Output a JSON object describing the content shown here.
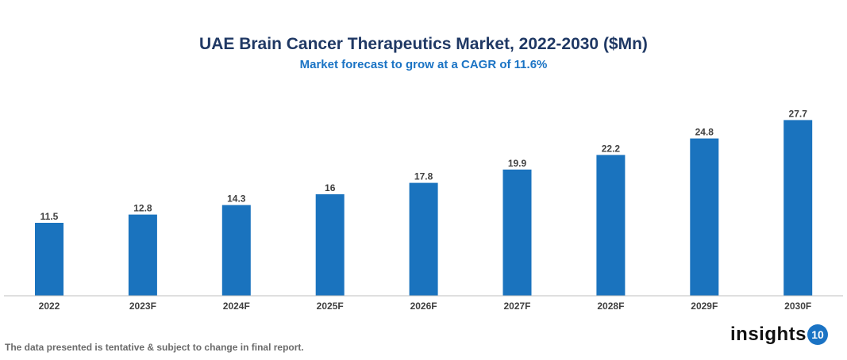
{
  "chart_data": {
    "type": "bar",
    "title": "UAE Brain Cancer Therapeutics Market, 2022-2030 ($Mn)",
    "subtitle": "Market forecast to grow at a CAGR of 11.6%",
    "categories": [
      "2022",
      "2023F",
      "2024F",
      "2025F",
      "2026F",
      "2027F",
      "2028F",
      "2029F",
      "2030F"
    ],
    "values": [
      11.5,
      12.8,
      14.3,
      16,
      17.8,
      19.9,
      22.2,
      24.8,
      27.7
    ],
    "xlabel": "",
    "ylabel": "",
    "ylim": [
      0,
      28
    ],
    "grid": false,
    "data_labels": true,
    "bar_color": "#1a73be"
  },
  "footer": {
    "note": "The data presented is tentative & subject to change in final report.",
    "logo_text": "insights",
    "logo_badge": "10"
  }
}
